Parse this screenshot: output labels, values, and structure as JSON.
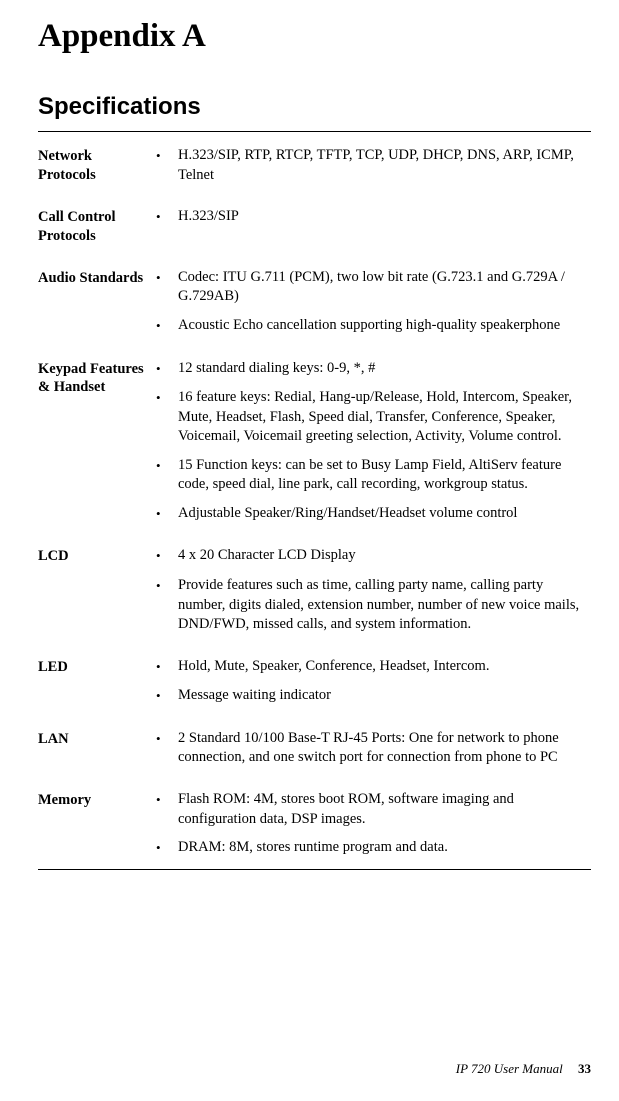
{
  "appendix_title": "Appendix A",
  "section_title": "Specifications",
  "specs": [
    {
      "label": "Network Protocols",
      "items": [
        "H.323/SIP, RTP, RTCP, TFTP, TCP, UDP, DHCP, DNS, ARP, ICMP, Telnet"
      ]
    },
    {
      "label": "Call Control Protocols",
      "items": [
        "H.323/SIP"
      ]
    },
    {
      "label": "Audio Standards",
      "items": [
        "Codec: ITU G.711 (PCM), two low bit rate (G.723.1 and G.729A / G.729AB)",
        "Acoustic Echo cancellation supporting high-quality speakerphone"
      ]
    },
    {
      "label": "Keypad Features & Handset",
      "items": [
        "12 standard dialing keys: 0-9, *, #",
        "16 feature keys: Redial, Hang-up/Release, Hold, Intercom, Speaker, Mute, Headset, Flash, Speed dial, Transfer, Conference, Speaker, Voicemail, Voicemail greeting selection, Activity, Volume control.",
        "15 Function keys: can be set to Busy Lamp Field, AltiServ feature code, speed dial, line park, call recording, workgroup status.",
        "Adjustable Speaker/Ring/Handset/Headset volume control"
      ]
    },
    {
      "label": "LCD",
      "items": [
        "4 x 20 Character LCD Display",
        "Provide features such as time, calling party name, calling party number, digits dialed, extension number, number of new voice mails, DND/FWD, missed calls, and system information."
      ]
    },
    {
      "label": "LED",
      "items": [
        "Hold, Mute, Speaker, Conference, Headset, Intercom.",
        "Message waiting indicator"
      ]
    },
    {
      "label": "LAN",
      "items": [
        "2 Standard 10/100 Base-T RJ-45 Ports: One for network to phone connection, and one switch port for connection from phone to PC"
      ]
    },
    {
      "label": "Memory",
      "items": [
        "Flash ROM: 4M, stores boot ROM, software imaging and configuration data, DSP images.",
        "DRAM: 8M, stores runtime program and data."
      ]
    }
  ],
  "footer_text": "IP 720 User Manual",
  "page_number": "33"
}
